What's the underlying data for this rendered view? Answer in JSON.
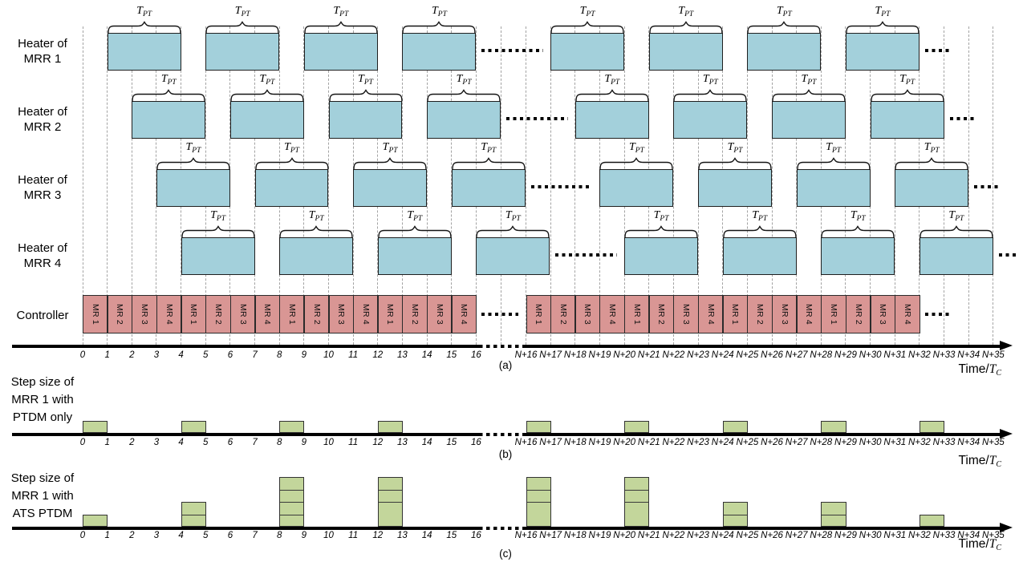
{
  "figure": {
    "time_axis": {
      "prefix": "Time/",
      "symbol": "T",
      "subscript": "C"
    },
    "brace": {
      "symbol": "T",
      "subscript": "PT"
    },
    "left_ticks": [
      "0",
      "1",
      "2",
      "3",
      "4",
      "5",
      "6",
      "7",
      "8",
      "9",
      "10",
      "11",
      "12",
      "13",
      "14",
      "15",
      "16"
    ],
    "right_ticks": [
      "N+16",
      "N+17",
      "N+18",
      "N+19",
      "N+20",
      "N+21",
      "N+22",
      "N+23",
      "N+24",
      "N+25",
      "N+26",
      "N+27",
      "N+28",
      "N+29",
      "N+30",
      "N+31",
      "N+32",
      "N+33",
      "N+34",
      "N+35"
    ],
    "panel_a": {
      "caption": "(a)",
      "controller": {
        "label": "Controller",
        "left_slots": [
          "MR 1",
          "MR 2",
          "MR 3",
          "MR 4",
          "MR 1",
          "MR 2",
          "MR 3",
          "MR 4",
          "MR 1",
          "MR 2",
          "MR 3",
          "MR 4",
          "MR 1",
          "MR 2",
          "MR 3",
          "MR 4"
        ],
        "right_slots": [
          "MR 1",
          "MR 2",
          "MR 3",
          "MR 4",
          "MR 1",
          "MR 2",
          "MR 3",
          "MR 4",
          "MR 1",
          "MR 2",
          "MR 3",
          "MR 4",
          "MR 1",
          "MR 2",
          "MR 3",
          "MR 4"
        ]
      },
      "block_width_units": 3,
      "heaters": [
        {
          "label_lines": [
            "Heater of",
            "MRR 1"
          ],
          "left_block_starts": [
            1,
            5,
            9,
            13
          ],
          "right_block_starts": [
            1,
            5,
            9,
            13
          ]
        },
        {
          "label_lines": [
            "Heater of",
            "MRR 2"
          ],
          "left_block_starts": [
            2,
            6,
            10,
            14
          ],
          "right_block_starts": [
            2,
            6,
            10,
            14
          ]
        },
        {
          "label_lines": [
            "Heater of",
            "MRR 3"
          ],
          "left_block_starts": [
            3,
            7,
            11,
            15
          ],
          "right_block_starts": [
            3,
            7,
            11,
            15
          ]
        },
        {
          "label_lines": [
            "Heater of",
            "MRR 4"
          ],
          "left_block_starts": [
            4,
            8,
            12,
            16
          ],
          "right_block_starts": [
            4,
            8,
            12,
            16
          ]
        }
      ]
    },
    "panel_b": {
      "caption": "(b)",
      "label_lines": [
        "Step size of",
        "MRR 1 with",
        "PTDM only"
      ],
      "left_blocks": [
        {
          "start": 0,
          "segments": [
            1
          ]
        },
        {
          "start": 4,
          "segments": [
            1
          ]
        },
        {
          "start": 8,
          "segments": [
            1
          ]
        },
        {
          "start": 12,
          "segments": [
            1
          ]
        }
      ],
      "right_blocks": [
        {
          "start": 0,
          "segments": [
            1
          ]
        },
        {
          "start": 4,
          "segments": [
            1
          ]
        },
        {
          "start": 8,
          "segments": [
            1
          ]
        },
        {
          "start": 12,
          "segments": [
            1
          ]
        },
        {
          "start": 16,
          "segments": [
            1
          ]
        }
      ]
    },
    "panel_c": {
      "caption": "(c)",
      "label_lines": [
        "Step size of",
        "MRR 1 with",
        "ATS PTDM"
      ],
      "left_blocks": [
        {
          "start": 0,
          "segments": [
            1
          ]
        },
        {
          "start": 4,
          "segments": [
            1,
            1
          ]
        },
        {
          "start": 8,
          "segments": [
            1,
            1,
            1,
            1
          ]
        },
        {
          "start": 12,
          "segments": [
            1,
            1,
            2
          ]
        }
      ],
      "right_blocks": [
        {
          "start": 0,
          "segments": [
            1,
            1,
            2
          ]
        },
        {
          "start": 4,
          "segments": [
            1,
            1,
            2
          ]
        },
        {
          "start": 8,
          "segments": [
            1,
            1
          ]
        },
        {
          "start": 12,
          "segments": [
            1,
            1
          ]
        },
        {
          "start": 16,
          "segments": [
            1
          ]
        }
      ]
    },
    "colors": {
      "heater_fill": "#a3d0db",
      "controller_fill": "#d99694",
      "step_fill": "#c3d69b",
      "grid": "#a3a3a3",
      "axis": "#000000"
    }
  }
}
